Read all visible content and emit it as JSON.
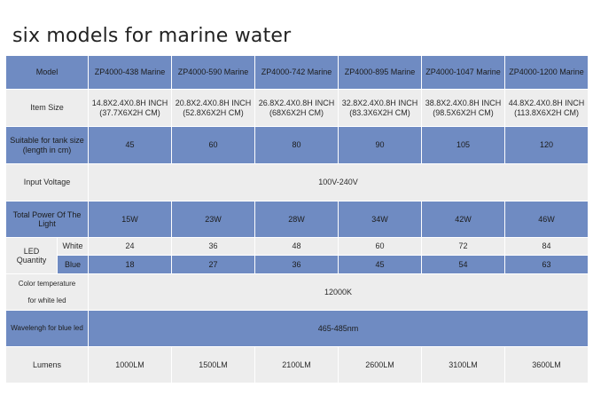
{
  "title": "six models for marine water",
  "labels": {
    "model": "Model",
    "item_size": "Item Size",
    "tank_size_l1": "Suitable for tank size",
    "tank_size_l2": "(length in cm)",
    "input_voltage": "Input Voltage",
    "total_power": "Total Power Of The Light",
    "led_quantity_l1": "LED",
    "led_quantity_l2": "Quantity",
    "white": "White",
    "blue": "Blue",
    "color_temp_l1": "Color temperature",
    "color_temp_l2": "for white led",
    "wavelength": "Wavelengh for blue led",
    "lumens": "Lumens"
  },
  "models": [
    {
      "name": "ZP4000-438 Marine",
      "size_inch": "14.8X2.4X0.8H INCH",
      "size_cm": "(37.7X6X2H CM)",
      "tank": "45",
      "power": "15W",
      "white": "24",
      "blue": "18",
      "lumens": "1000LM"
    },
    {
      "name": "ZP4000-590 Marine",
      "size_inch": "20.8X2.4X0.8H INCH",
      "size_cm": "(52.8X6X2H CM)",
      "tank": "60",
      "power": "23W",
      "white": "36",
      "blue": "27",
      "lumens": "1500LM"
    },
    {
      "name": "ZP4000-742 Marine",
      "size_inch": "26.8X2.4X0.8H INCH",
      "size_cm": "(68X6X2H CM)",
      "tank": "80",
      "power": "28W",
      "white": "48",
      "blue": "36",
      "lumens": "2100LM"
    },
    {
      "name": "ZP4000-895 Marine",
      "size_inch": "32.8X2.4X0.8H INCH",
      "size_cm": "(83.3X6X2H CM)",
      "tank": "90",
      "power": "34W",
      "white": "60",
      "blue": "45",
      "lumens": "2600LM"
    },
    {
      "name": "ZP4000-1047 Marine",
      "size_inch": "38.8X2.4X0.8H INCH",
      "size_cm": "(98.5X6X2H CM)",
      "tank": "105",
      "power": "42W",
      "white": "72",
      "blue": "54",
      "lumens": "3100LM"
    },
    {
      "name": "ZP4000-1200 Marine",
      "size_inch": "44.8X2.4X0.8H INCH",
      "size_cm": "(113.8X6X2H CM)",
      "tank": "120",
      "power": "46W",
      "white": "84",
      "blue": "63",
      "lumens": "3600LM"
    }
  ],
  "shared": {
    "input_voltage": "100V-240V",
    "color_temp": "12000K",
    "wavelength": "465-485nm"
  },
  "colors": {
    "header_blue": "#6f8bc2",
    "row_gray": "#ededed"
  }
}
